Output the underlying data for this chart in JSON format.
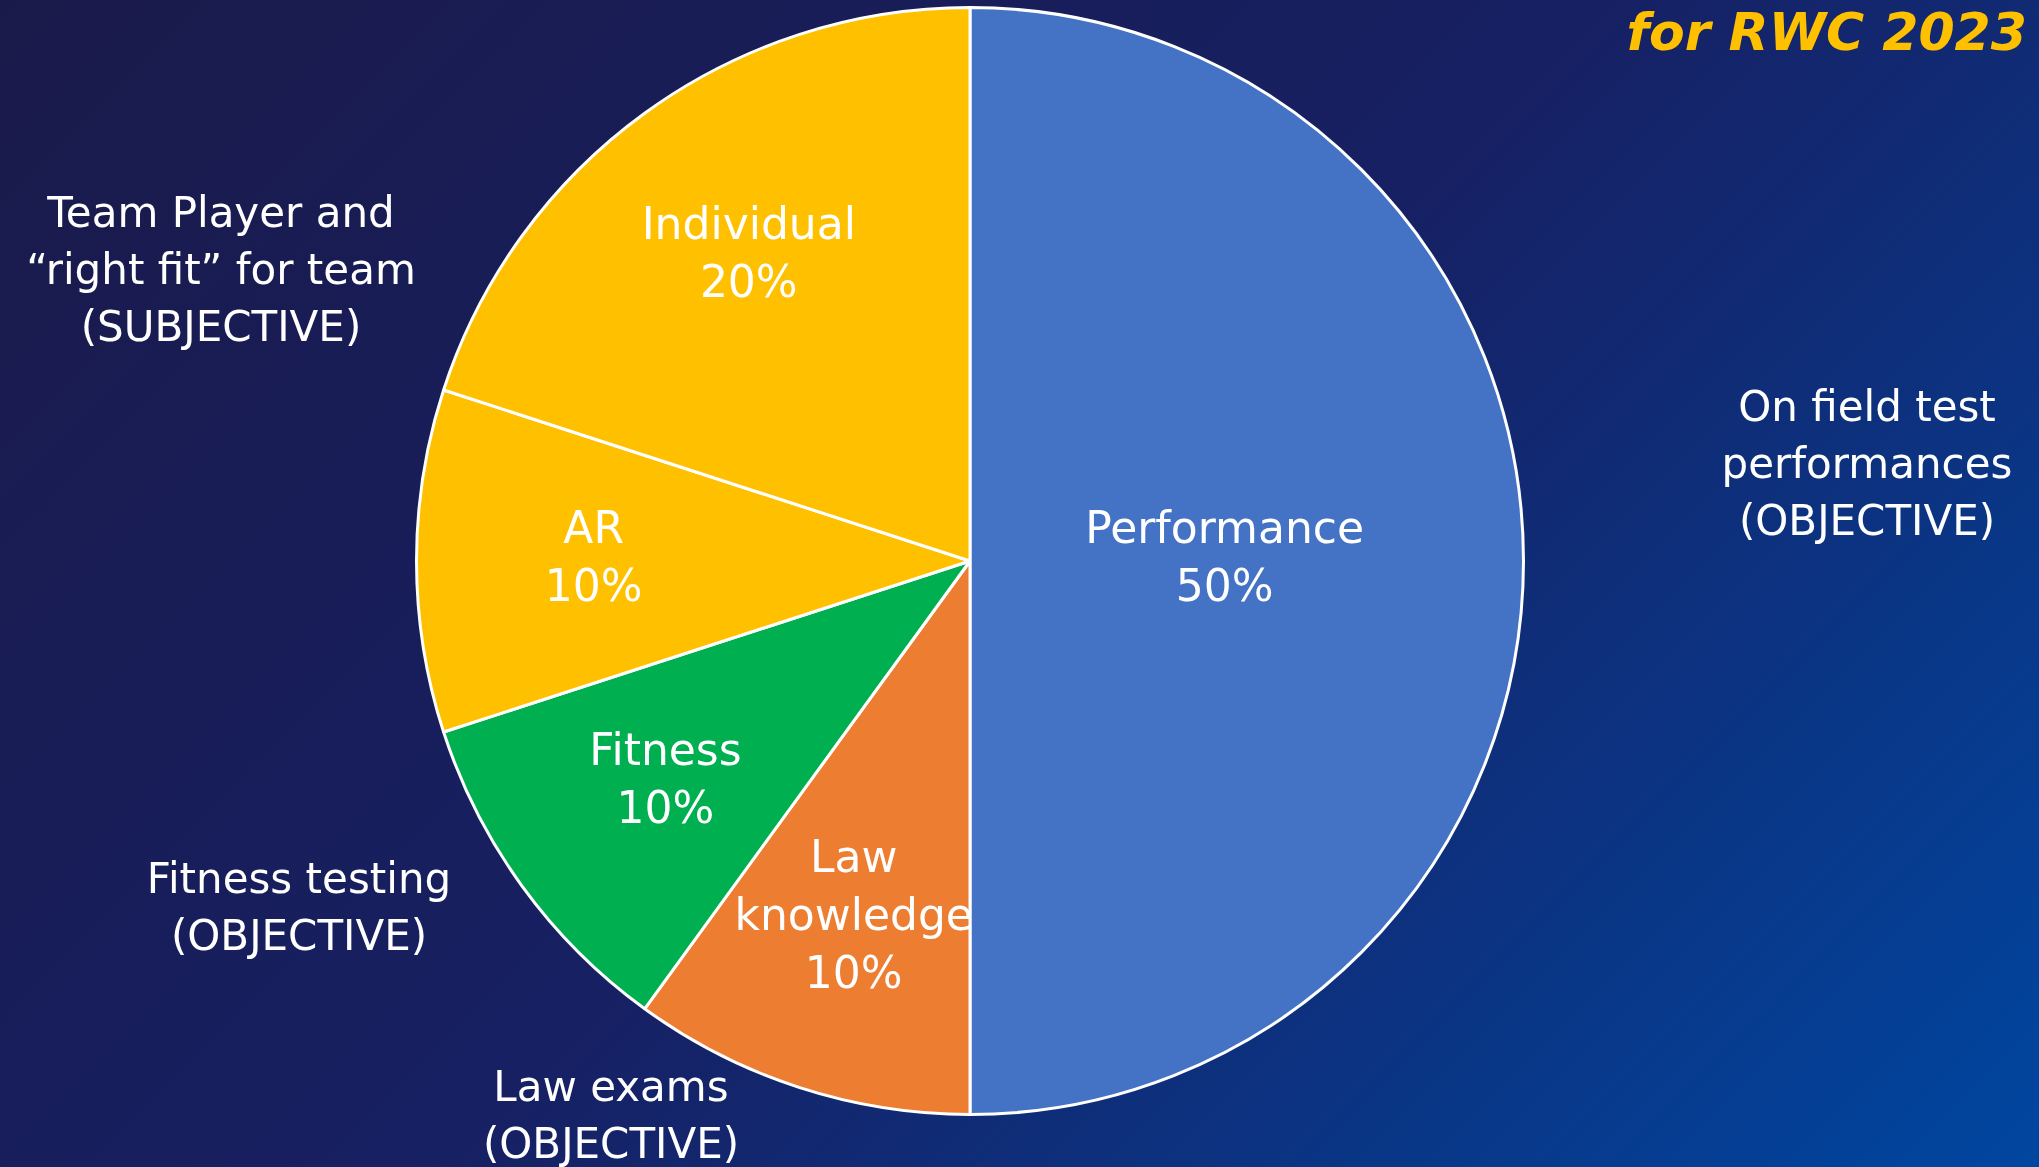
{
  "chart_data": {
    "type": "pie",
    "title": "for RWC 2023",
    "categories": [
      "Performance",
      "Law knowledge",
      "Fitness",
      "AR",
      "Individual"
    ],
    "values": [
      50,
      10,
      10,
      10,
      20
    ],
    "colors": [
      "#4472c4",
      "#ed7d31",
      "#00b050",
      "#ffc000",
      "#ffc000"
    ],
    "value_labels": [
      "50%",
      "10%",
      "10%",
      "10%",
      "20%"
    ],
    "legend": false,
    "annotations": [
      "On field test performances (OBJECTIVE)",
      "Law exams (OBJECTIVE)",
      "Fitness testing (OBJECTIVE)",
      "Team Player and “right fit” for team (SUBJECTIVE)"
    ]
  }
}
